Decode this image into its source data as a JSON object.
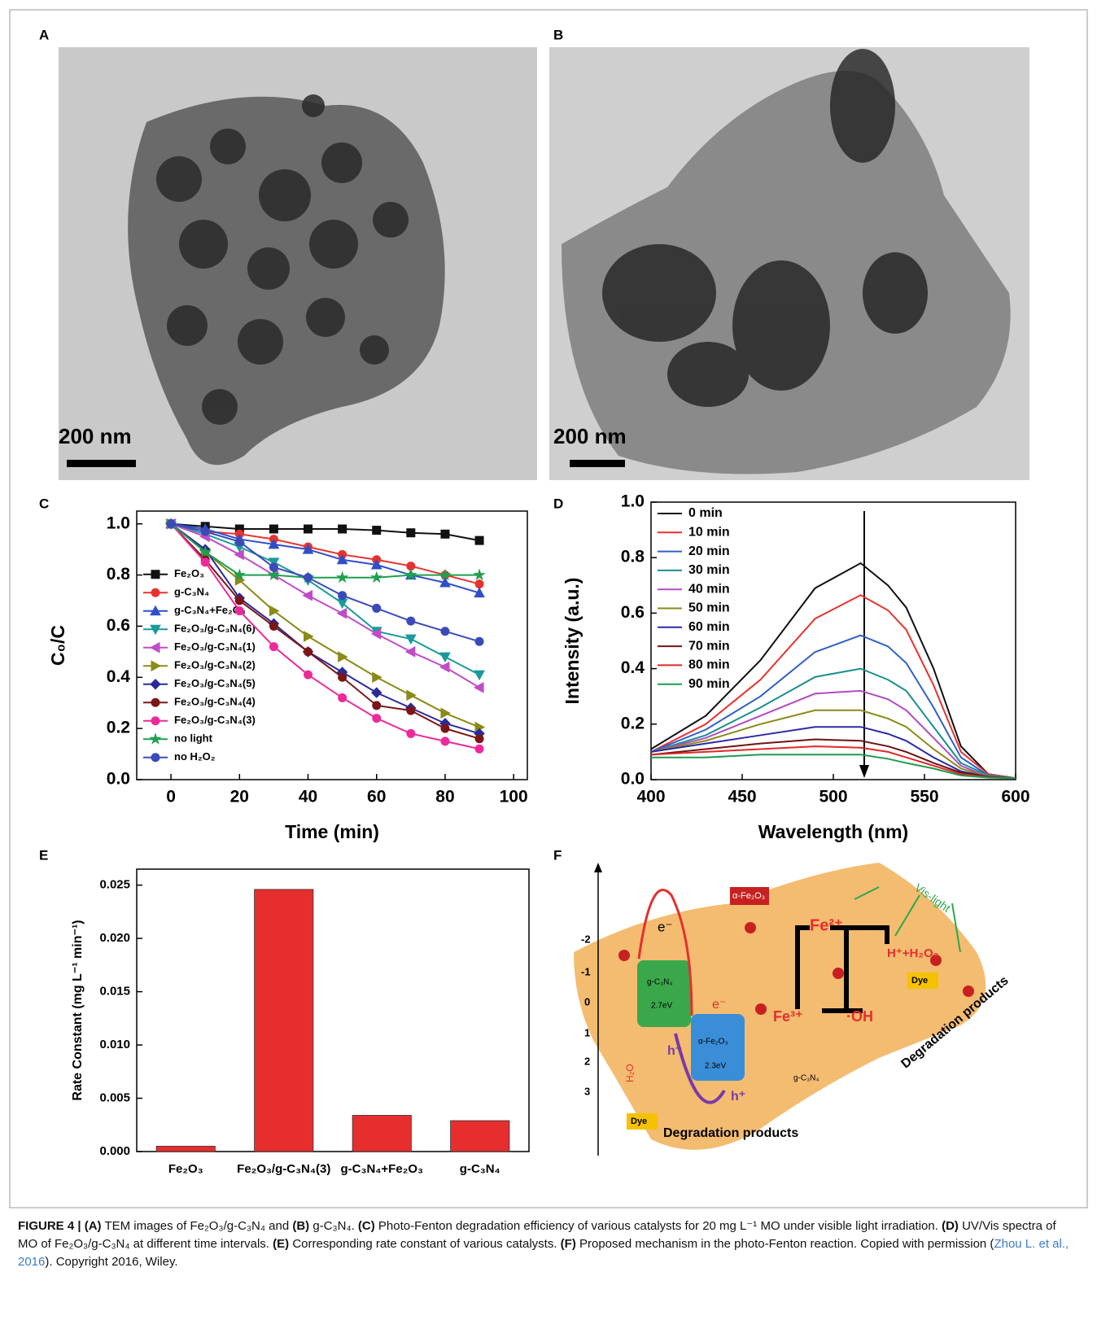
{
  "panel_labels": [
    "A",
    "B",
    "C",
    "D",
    "E",
    "F"
  ],
  "images": [
    {
      "scale_bar": "200 nm"
    },
    {
      "scale_bar": "200 nm"
    }
  ],
  "chart_data": [
    {
      "type": "line",
      "x_label": "Time (min)",
      "y_label": "C₀/C",
      "x": [
        0,
        10,
        20,
        30,
        40,
        50,
        60,
        70,
        80,
        90
      ],
      "xlim": [
        -10,
        104
      ],
      "xticks": [
        0,
        20,
        40,
        60,
        80,
        100
      ],
      "ylim": [
        0,
        1.05
      ],
      "yticks": [
        {
          "value": 0,
          "label": "0.0"
        },
        0.2,
        0.4,
        0.6,
        0.8,
        {
          "value": 1,
          "label": "1.0"
        }
      ],
      "legend": "lower left",
      "series": [
        {
          "name": "Fe₂O₃",
          "color": "#111111",
          "marker": "square",
          "values": [
            1,
            0.99,
            0.98,
            0.98,
            0.98,
            0.98,
            0.975,
            0.965,
            0.96,
            0.935
          ]
        },
        {
          "name": "g-C₃N₄",
          "color": "#e8322e",
          "marker": "circle",
          "values": [
            1,
            0.97,
            0.96,
            0.94,
            0.91,
            0.88,
            0.86,
            0.835,
            0.8,
            0.765
          ]
        },
        {
          "name": "g-C₃N₄+Fe₂O₃",
          "color": "#2f4fc8",
          "marker": "triangle-up",
          "values": [
            1,
            0.98,
            0.94,
            0.92,
            0.9,
            0.86,
            0.84,
            0.8,
            0.77,
            0.73
          ]
        },
        {
          "name": "Fe₂O₃/g-C₃N₄(6)",
          "color": "#1a9a9a",
          "marker": "triangle-down",
          "values": [
            1,
            0.96,
            0.91,
            0.85,
            0.78,
            0.69,
            0.58,
            0.55,
            0.48,
            0.41
          ]
        },
        {
          "name": "Fe₂O₃/g-C₃N₄(1)",
          "color": "#c04cc8",
          "marker": "triangle-left",
          "values": [
            1,
            0.95,
            0.88,
            0.8,
            0.72,
            0.65,
            0.57,
            0.5,
            0.44,
            0.36
          ]
        },
        {
          "name": "Fe₂O₃/g-C₃N₄(2)",
          "color": "#8a8a18",
          "marker": "triangle-right",
          "values": [
            1,
            0.89,
            0.78,
            0.66,
            0.56,
            0.48,
            0.4,
            0.33,
            0.26,
            0.205
          ]
        },
        {
          "name": "Fe₂O₃/g-C₃N₄(5)",
          "color": "#2a2a9a",
          "marker": "diamond",
          "values": [
            1,
            0.9,
            0.71,
            0.61,
            0.5,
            0.42,
            0.34,
            0.28,
            0.22,
            0.18
          ]
        },
        {
          "name": "Fe₂O₃/g-C₃N₄(4)",
          "color": "#7a1616",
          "marker": "circle",
          "values": [
            1,
            0.86,
            0.7,
            0.6,
            0.5,
            0.4,
            0.29,
            0.27,
            0.2,
            0.16
          ]
        },
        {
          "name": "Fe₂O₃/g-C₃N₄(3)",
          "color": "#ee2a9a",
          "marker": "circle",
          "values": [
            1,
            0.85,
            0.66,
            0.52,
            0.41,
            0.32,
            0.24,
            0.18,
            0.15,
            0.12
          ]
        },
        {
          "name": "no  light",
          "color": "#1fa050",
          "marker": "star",
          "values": [
            1,
            0.89,
            0.8,
            0.8,
            0.79,
            0.79,
            0.79,
            0.8,
            0.8,
            0.8
          ]
        },
        {
          "name": "no  H₂O₂",
          "color": "#3a4ab8",
          "marker": "circle",
          "values": [
            1,
            0.97,
            0.93,
            0.83,
            0.79,
            0.72,
            0.67,
            0.62,
            0.58,
            0.54
          ]
        }
      ]
    },
    {
      "type": "line",
      "x_label": "Wavelength (nm)",
      "y_label": "Intensity (a.u.)",
      "x": [
        400,
        430,
        460,
        490,
        515,
        530,
        540,
        555,
        570,
        585,
        600
      ],
      "xlim": [
        400,
        600
      ],
      "xticks": [
        400,
        450,
        500,
        550,
        600
      ],
      "ylim": [
        0,
        1
      ],
      "yticks": [
        {
          "value": 0,
          "label": "0.0"
        },
        0.2,
        0.4,
        0.6,
        0.8,
        {
          "value": 1,
          "label": "1.0"
        }
      ],
      "legend": "upper left",
      "series": [
        {
          "name": "0 min",
          "color": "#111111",
          "values": [
            0.11,
            0.23,
            0.43,
            0.69,
            0.78,
            0.7,
            0.62,
            0.4,
            0.12,
            0.02,
            0.005
          ]
        },
        {
          "name": "10 min",
          "color": "#e8322e",
          "values": [
            0.1,
            0.2,
            0.36,
            0.58,
            0.665,
            0.61,
            0.54,
            0.34,
            0.1,
            0.02,
            0.005
          ]
        },
        {
          "name": "20 min",
          "color": "#2f5fc8",
          "values": [
            0.1,
            0.18,
            0.3,
            0.46,
            0.52,
            0.48,
            0.42,
            0.26,
            0.08,
            0.015,
            0.005
          ]
        },
        {
          "name": "30 min",
          "color": "#1a8f8f",
          "values": [
            0.1,
            0.16,
            0.26,
            0.37,
            0.4,
            0.36,
            0.32,
            0.19,
            0.06,
            0.015,
            0.005
          ]
        },
        {
          "name": "40 min",
          "color": "#b04cc0",
          "values": [
            0.1,
            0.15,
            0.23,
            0.31,
            0.32,
            0.29,
            0.25,
            0.15,
            0.05,
            0.01,
            0.005
          ]
        },
        {
          "name": "50 min",
          "color": "#8a8a18",
          "values": [
            0.1,
            0.14,
            0.2,
            0.25,
            0.25,
            0.22,
            0.19,
            0.11,
            0.04,
            0.01,
            0.005
          ]
        },
        {
          "name": "60 min",
          "color": "#2a2aa8",
          "values": [
            0.1,
            0.13,
            0.16,
            0.19,
            0.19,
            0.165,
            0.14,
            0.08,
            0.03,
            0.01,
            0.005
          ]
        },
        {
          "name": "70 min",
          "color": "#6e1414",
          "values": [
            0.09,
            0.11,
            0.13,
            0.145,
            0.14,
            0.12,
            0.1,
            0.06,
            0.025,
            0.01,
            0.005
          ]
        },
        {
          "name": "80 min",
          "color": "#e02828",
          "values": [
            0.09,
            0.1,
            0.11,
            0.12,
            0.115,
            0.1,
            0.08,
            0.05,
            0.02,
            0.008,
            0.005
          ]
        },
        {
          "name": "90 min",
          "color": "#1f9a50",
          "values": [
            0.08,
            0.08,
            0.09,
            0.09,
            0.09,
            0.075,
            0.06,
            0.04,
            0.015,
            0.007,
            0.005
          ]
        }
      ]
    },
    {
      "type": "bar",
      "y_label": "Rate Constant (mg L⁻¹ min⁻¹)",
      "categories": [
        "Fe₂O₃",
        "Fe₂O₃/g-C₃N₄(3)",
        "g-C₃N₄+Fe₂O₃",
        "g-C₃N₄"
      ],
      "values": [
        0.0005,
        0.0246,
        0.0034,
        0.0029
      ],
      "color": "#e62e2e",
      "ylim": [
        0,
        0.0265
      ],
      "yticks": [
        {
          "value": 0,
          "label": "0.000"
        },
        {
          "value": 0.005,
          "label": "0.005"
        },
        {
          "value": 0.01,
          "label": "0.010"
        },
        {
          "value": 0.015,
          "label": "0.015"
        },
        {
          "value": 0.02,
          "label": "0.020"
        },
        {
          "value": 0.025,
          "label": "0.025"
        }
      ]
    }
  ],
  "diagram": {
    "energy_ticks": [
      "-2",
      "-1",
      "0",
      "1",
      "2",
      "3"
    ],
    "labels": {
      "vis_light": "Vis-light",
      "fe2o3_top": "α-Fe₂O₃",
      "fe2": "Fe²⁺",
      "h_h2o2": "H⁺+H₂O₂",
      "dye_right": "Dye",
      "electron_top": "e⁻",
      "gcn_box": "g-C₃N₄",
      "gcn_gap": "2.7eV",
      "electron_mid": "e⁻",
      "fe3": "Fe³⁺",
      "oh": "·OH",
      "fe_box": "α-Fe₂O₃",
      "fe_gap": "2.3eV",
      "hole_left": "h⁺",
      "hole_right": "h⁺",
      "h2o": "H₂O",
      "gcn_label": "g-C₃N₄",
      "dye_left": "Dye",
      "deg_left": "Degradation products",
      "deg_right": "Degradation products"
    }
  },
  "caption": [
    "FIGURE 4 | ",
    "(A)",
    " TEM images of Fe₂O₃/g-C₃N₄ and ",
    "(B)",
    " g-C₃N₄. ",
    "(C)",
    " Photo-Fenton degradation efficiency of various catalysts for 20 mg L⁻¹ MO under visible light irradiation. ",
    "(D)",
    " UV/Vis spectra of MO of Fe₂O₃/g-C₃N₄ at different time intervals. ",
    "(E)",
    " Corresponding rate constant of various catalysts. ",
    "(F)",
    " Proposed mechanism in the photo-Fenton reaction. Copied with permission (",
    "Zhou L. et al., 2016",
    "). Copyright 2016, Wiley."
  ]
}
